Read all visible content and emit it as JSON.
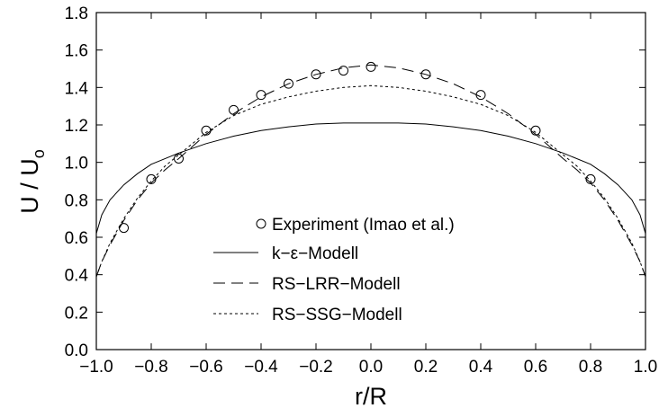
{
  "chart_data": {
    "type": "line",
    "xlabel": "r/R",
    "ylabel": "U / U",
    "ylabel_subscript": "o",
    "xlim": [
      -1.0,
      1.0
    ],
    "ylim": [
      0.0,
      1.8
    ],
    "x_ticks": [
      -1.0,
      -0.8,
      -0.6,
      -0.4,
      -0.2,
      0.0,
      0.2,
      0.4,
      0.6,
      0.8,
      1.0
    ],
    "x_tick_labels": [
      "−1.0",
      "−0.8",
      "−0.6",
      "−0.4",
      "−0.2",
      "0.0",
      "0.2",
      "0.4",
      "0.6",
      "0.8",
      "1.0"
    ],
    "y_ticks": [
      0.0,
      0.2,
      0.4,
      0.6,
      0.8,
      1.0,
      1.2,
      1.4,
      1.6,
      1.8
    ],
    "y_tick_labels": [
      "0.0",
      "0.2",
      "0.4",
      "0.6",
      "0.8",
      "1.0",
      "1.2",
      "1.4",
      "1.6",
      "1.8"
    ],
    "grid": false,
    "legend_position": "lower-center",
    "series": [
      {
        "name": "Experiment (Imao et al.)",
        "style": "circle-markers",
        "x": [
          -0.9,
          -0.8,
          -0.7,
          -0.6,
          -0.5,
          -0.4,
          -0.3,
          -0.2,
          -0.1,
          0.0,
          0.2,
          0.4,
          0.6,
          0.8
        ],
        "y": [
          0.65,
          0.91,
          1.02,
          1.17,
          1.28,
          1.36,
          1.42,
          1.47,
          1.49,
          1.51,
          1.47,
          1.36,
          1.17,
          0.91
        ]
      },
      {
        "name": "k−ε−Modell",
        "style": "solid",
        "x": [
          -1.0,
          -0.98,
          -0.95,
          -0.9,
          -0.85,
          -0.8,
          -0.7,
          -0.6,
          -0.5,
          -0.4,
          -0.3,
          -0.2,
          -0.1,
          0.0,
          0.1,
          0.2,
          0.3,
          0.4,
          0.5,
          0.6,
          0.7,
          0.8,
          0.85,
          0.9,
          0.95,
          0.98,
          1.0
        ],
        "y": [
          0.62,
          0.72,
          0.8,
          0.88,
          0.94,
          0.99,
          1.05,
          1.1,
          1.14,
          1.17,
          1.19,
          1.205,
          1.21,
          1.21,
          1.21,
          1.205,
          1.19,
          1.17,
          1.14,
          1.1,
          1.05,
          0.99,
          0.94,
          0.88,
          0.8,
          0.72,
          0.62
        ]
      },
      {
        "name": "RS−LRR−Modell",
        "style": "long-dash",
        "x": [
          -1.0,
          -0.98,
          -0.95,
          -0.9,
          -0.85,
          -0.8,
          -0.75,
          -0.7,
          -0.6,
          -0.5,
          -0.4,
          -0.3,
          -0.2,
          -0.1,
          0.0,
          0.1,
          0.2,
          0.3,
          0.4,
          0.5,
          0.6,
          0.7,
          0.75,
          0.8,
          0.85,
          0.9,
          0.95,
          0.98,
          1.0
        ],
        "y": [
          0.39,
          0.47,
          0.56,
          0.69,
          0.8,
          0.89,
          0.96,
          1.02,
          1.15,
          1.26,
          1.35,
          1.42,
          1.47,
          1.505,
          1.52,
          1.505,
          1.47,
          1.42,
          1.35,
          1.26,
          1.15,
          1.02,
          0.96,
          0.89,
          0.8,
          0.69,
          0.56,
          0.47,
          0.39
        ]
      },
      {
        "name": "RS−SSG−Modell",
        "style": "short-dash",
        "x": [
          -1.0,
          -0.98,
          -0.95,
          -0.9,
          -0.85,
          -0.8,
          -0.75,
          -0.7,
          -0.6,
          -0.5,
          -0.4,
          -0.3,
          -0.2,
          -0.1,
          0.0,
          0.1,
          0.2,
          0.3,
          0.4,
          0.5,
          0.6,
          0.7,
          0.75,
          0.8,
          0.85,
          0.9,
          0.95,
          0.98,
          1.0
        ],
        "y": [
          0.39,
          0.47,
          0.57,
          0.7,
          0.81,
          0.9,
          0.98,
          1.04,
          1.16,
          1.25,
          1.31,
          1.35,
          1.38,
          1.4,
          1.41,
          1.4,
          1.38,
          1.35,
          1.31,
          1.25,
          1.16,
          1.04,
          0.98,
          0.9,
          0.81,
          0.7,
          0.57,
          0.47,
          0.39
        ]
      }
    ]
  }
}
